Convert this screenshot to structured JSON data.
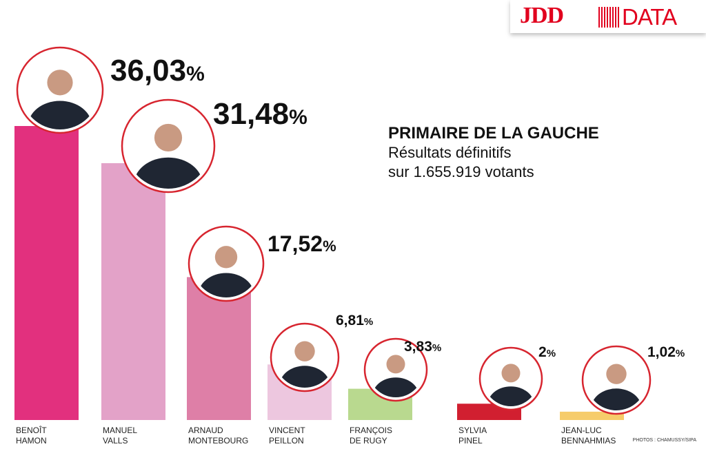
{
  "brand": {
    "logo": "JDD",
    "suffix": "DATA"
  },
  "heading": {
    "title": "PRIMAIRE DE LA GAUCHE",
    "subtitle_1": "Résultats définitifs",
    "subtitle_2": "sur 1.655.919 votants"
  },
  "photo_credit": "PHOTOS : CHAMUSSY/SIPA",
  "chart_data": {
    "type": "bar",
    "title": "PRIMAIRE DE LA GAUCHE — Résultats définitifs sur 1.655.919 votants",
    "xlabel": "",
    "ylabel": "%",
    "ylim": [
      0,
      40
    ],
    "categories": [
      "BENOÎT HAMON",
      "MANUEL VALLS",
      "ARNAUD MONTEBOURG",
      "VINCENT PEILLON",
      "FRANÇOIS DE RUGY",
      "SYLVIA PINEL",
      "JEAN-LUC BENNAHMIAS"
    ],
    "name_lines": [
      [
        "BENOÎT",
        "HAMON"
      ],
      [
        "MANUEL",
        "VALLS"
      ],
      [
        "ARNAUD",
        "MONTEBOURG"
      ],
      [
        "VINCENT",
        "PEILLON"
      ],
      [
        "FRANÇOIS",
        "DE RUGY"
      ],
      [
        "SYLVIA",
        "PINEL"
      ],
      [
        "JEAN-LUC",
        "BENNAHMIAS"
      ]
    ],
    "values": [
      36.03,
      31.48,
      17.52,
      6.81,
      3.83,
      2,
      1.02
    ],
    "value_labels": [
      "36,03",
      "31,48",
      "17,52",
      "6,81",
      "3,83",
      "2",
      "1,02"
    ],
    "unit": "%",
    "colors": [
      "#e2307e",
      "#e3a2c8",
      "#de7fa7",
      "#edc7df",
      "#b9d98f",
      "#d11f30",
      "#f6cc6b"
    ],
    "ring_color": "#d7252f"
  }
}
